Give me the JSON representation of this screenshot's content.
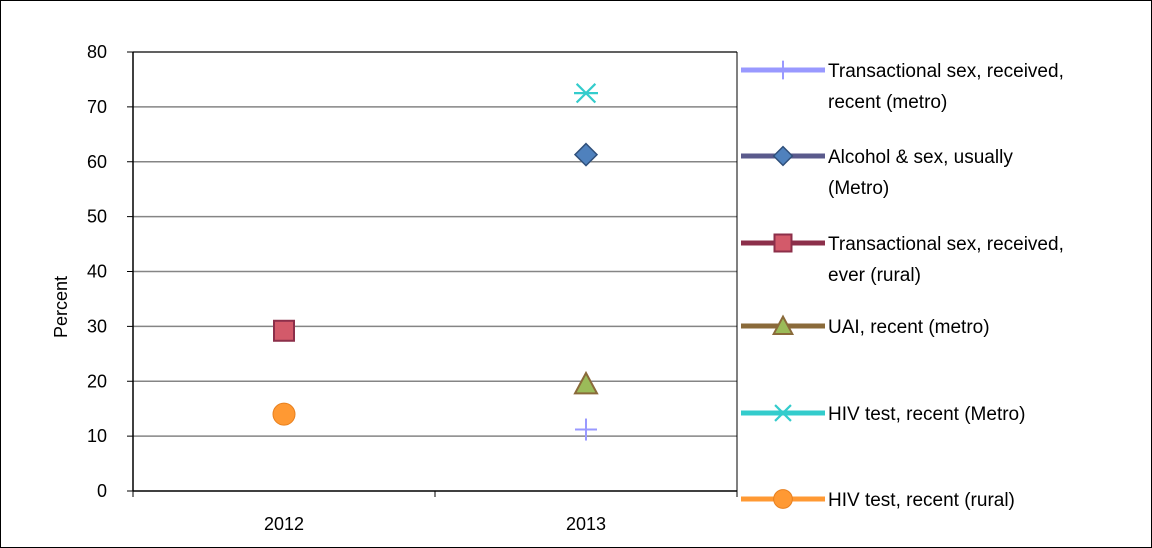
{
  "chart_data": {
    "type": "scatter",
    "ylabel": "Percent",
    "xlabel": "",
    "categories": [
      "2012",
      "2013"
    ],
    "ylim": [
      0,
      80
    ],
    "yticks": [
      0,
      10,
      20,
      30,
      40,
      50,
      60,
      70,
      80
    ],
    "grid": true,
    "legend_position": "right",
    "series": [
      {
        "name": "Transactional sex, received, recent (metro)",
        "name_lines": [
          "Transactional sex, received,",
          "recent (metro)"
        ],
        "marker": "plus",
        "color": "#9999ff",
        "points": [
          {
            "x": "2013",
            "y": 11.2
          }
        ]
      },
      {
        "name": "Alcohol & sex,  usually (Metro)",
        "name_lines": [
          "Alcohol & sex,  usually",
          "(Metro)"
        ],
        "marker": "diamond",
        "color": "#4f81bd",
        "line_color": "#5a5a8c",
        "points": [
          {
            "x": "2013",
            "y": 61.3
          }
        ]
      },
      {
        "name": "Transactional sex, received, ever (rural)",
        "name_lines": [
          "Transactional sex, received,",
          "ever (rural)"
        ],
        "marker": "square",
        "color": "#d35a6a",
        "line_color": "#8c2f4a",
        "points": [
          {
            "x": "2012",
            "y": 29.2
          }
        ]
      },
      {
        "name": "UAI, recent (metro)",
        "name_lines": [
          "UAI, recent (metro)"
        ],
        "marker": "triangle",
        "color": "#9bbb59",
        "line_color": "#8a6a3a",
        "points": [
          {
            "x": "2013",
            "y": 19.5
          }
        ]
      },
      {
        "name": "HIV test, recent (Metro)",
        "name_lines": [
          "HIV test, recent (Metro)"
        ],
        "marker": "asterisk",
        "color": "#33cccc",
        "points": [
          {
            "x": "2013",
            "y": 72.5
          }
        ]
      },
      {
        "name": "HIV test, recent (rural)",
        "name_lines": [
          "HIV test, recent (rural)"
        ],
        "marker": "circle",
        "color": "#ff9933",
        "points": [
          {
            "x": "2012",
            "y": 14.0
          }
        ]
      }
    ]
  }
}
